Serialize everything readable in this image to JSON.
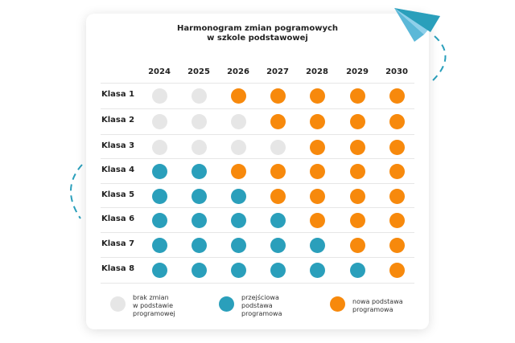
{
  "title_line1": "Harmonogram zmian pogramowych",
  "title_line2": "w szkole podstawowej",
  "years": [
    "2024",
    "2025",
    "2026",
    "2027",
    "2028",
    "2029",
    "2030"
  ],
  "colors": {
    "brak": "#e6e6e6",
    "przejsciowa": "#2a9fbb",
    "nowa": "#f7890c"
  },
  "rows": [
    {
      "label": "Klasa 1",
      "states": [
        "brak",
        "brak",
        "nowa",
        "nowa",
        "nowa",
        "nowa",
        "nowa"
      ]
    },
    {
      "label": "Klasa 2",
      "states": [
        "brak",
        "brak",
        "brak",
        "nowa",
        "nowa",
        "nowa",
        "nowa"
      ]
    },
    {
      "label": "Klasa 3",
      "states": [
        "brak",
        "brak",
        "brak",
        "brak",
        "nowa",
        "nowa",
        "nowa"
      ]
    },
    {
      "label": "Klasa 4",
      "states": [
        "przejsciowa",
        "przejsciowa",
        "nowa",
        "nowa",
        "nowa",
        "nowa",
        "nowa"
      ]
    },
    {
      "label": "Klasa 5",
      "states": [
        "przejsciowa",
        "przejsciowa",
        "przejsciowa",
        "nowa",
        "nowa",
        "nowa",
        "nowa"
      ]
    },
    {
      "label": "Klasa 6",
      "states": [
        "przejsciowa",
        "przejsciowa",
        "przejsciowa",
        "przejsciowa",
        "nowa",
        "nowa",
        "nowa"
      ]
    },
    {
      "label": "Klasa 7",
      "states": [
        "przejsciowa",
        "przejsciowa",
        "przejsciowa",
        "przejsciowa",
        "przejsciowa",
        "nowa",
        "nowa"
      ]
    },
    {
      "label": "Klasa 8",
      "states": [
        "przejsciowa",
        "przejsciowa",
        "przejsciowa",
        "przejsciowa",
        "przejsciowa",
        "przejsciowa",
        "nowa"
      ]
    }
  ],
  "legend": [
    {
      "key": "brak",
      "text": "brak zmian\nw podstawie\nprogramowej"
    },
    {
      "key": "przejsciowa",
      "text": "przejściowa\npodstawa\nprogramowa"
    },
    {
      "key": "nowa",
      "text": "nowa podstawa\nprogramowa"
    }
  ],
  "decor": {
    "paper-plane-icon": "#5bb8d8",
    "dashed-arc": "#2a9fbb"
  }
}
